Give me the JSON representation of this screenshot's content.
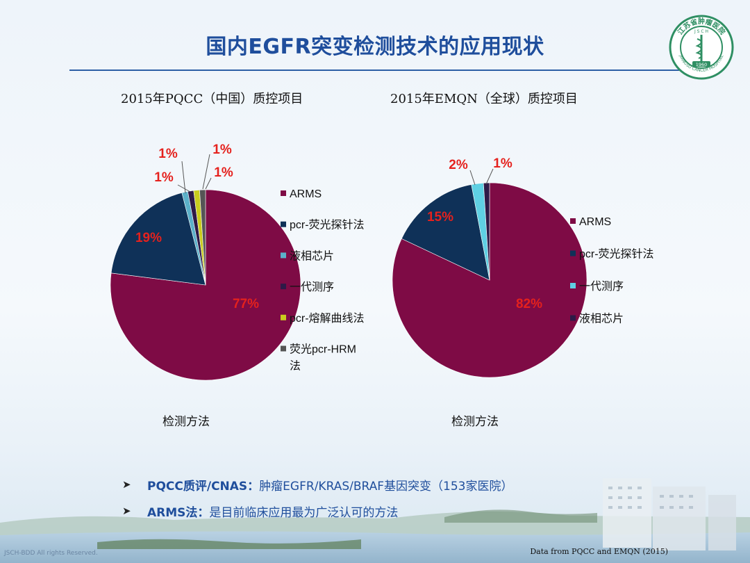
{
  "slide": {
    "title": "国内EGFR突变检测技术的应用现状",
    "logo_text": "江苏省肿瘤医院",
    "logo_year": "1960",
    "logo_sub": "JIANGSU CANCER HOSPITAL",
    "logo_letters": "J S C H"
  },
  "bullets": [
    {
      "head": "PQCC质评/CNAS：",
      "text": "肿瘤EGFR/KRAS/BRAF基因突变（153家医院）"
    },
    {
      "head": "ARMS法：",
      "text": "是目前临床应用最为广泛认可的方法"
    }
  ],
  "footer": {
    "left": "JSCH-BDD   All rights Reserved.",
    "right": "Data from PQCC and EMQN (2015)"
  },
  "chart_data": [
    {
      "type": "pie",
      "title": "2015年PQCC（中国）质控项目",
      "xlabel": "检测方法",
      "legend_position": "right",
      "series": [
        {
          "name": "ARMS",
          "value": 77,
          "label": "77%",
          "color": "#7e0b45"
        },
        {
          "name": "pcr-荧光探针法",
          "value": 19,
          "label": "19%",
          "color": "#0f3158"
        },
        {
          "name": "液相芯片",
          "value": 1,
          "label": "1%",
          "color": "#5bb0c9"
        },
        {
          "name": "一代测序",
          "value": 1,
          "label": "1%",
          "color": "#2e1a47"
        },
        {
          "name": "pcr-熔解曲线法",
          "value": 1,
          "label": "1%",
          "color": "#c9cc1e"
        },
        {
          "name": "荧光pcr-HRM法",
          "value": 1,
          "label": "1%",
          "color": "#555555"
        }
      ]
    },
    {
      "type": "pie",
      "title": "2015年EMQN（全球）质控项目",
      "xlabel": "检测方法",
      "legend_position": "right",
      "series": [
        {
          "name": "ARMS",
          "value": 82,
          "label": "82%",
          "color": "#7e0b45"
        },
        {
          "name": "pcr-荧光探针法",
          "value": 15,
          "label": "15%",
          "color": "#0f3158"
        },
        {
          "name": "一代测序",
          "value": 2,
          "label": "2%",
          "color": "#5fd0e3"
        },
        {
          "name": "液相芯片",
          "value": 1,
          "label": "1%",
          "color": "#2e1a47"
        }
      ]
    }
  ]
}
